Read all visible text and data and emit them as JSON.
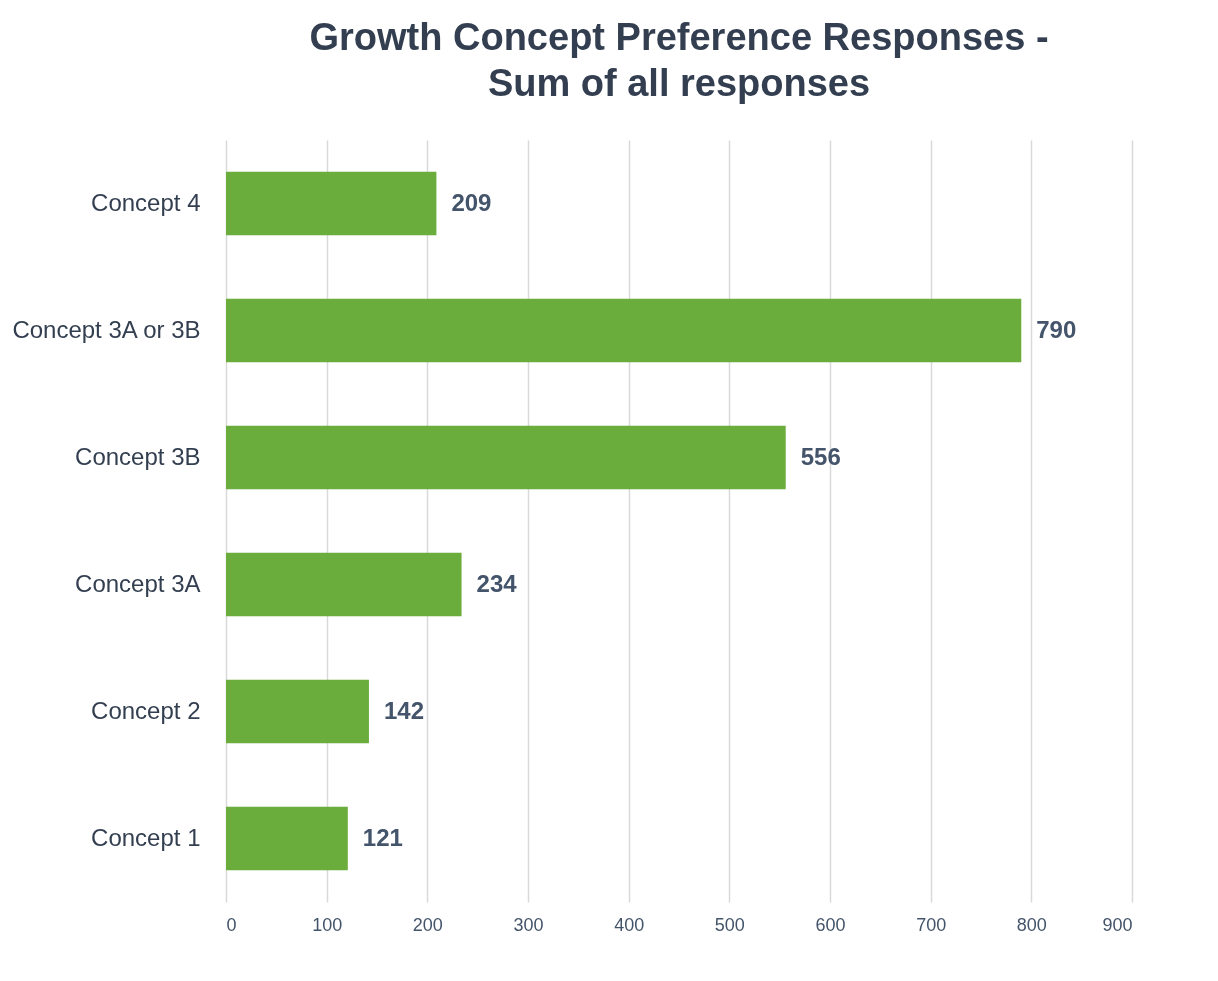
{
  "chart_data": {
    "type": "bar",
    "orientation": "horizontal",
    "title": "Growth Concept Preference Responses -\nSum of all responses",
    "categories": [
      "Concept 4",
      "Concept 3A or 3B",
      "Concept 3B",
      "Concept 3A",
      "Concept 2",
      "Concept 1"
    ],
    "values": [
      209,
      790,
      556,
      234,
      142,
      121
    ],
    "color": "#6aad3c",
    "xlim": [
      0,
      900
    ],
    "xticks": [
      0,
      100,
      200,
      300,
      400,
      500,
      600,
      700,
      800,
      900
    ],
    "grid": "x",
    "data_labels": true
  }
}
